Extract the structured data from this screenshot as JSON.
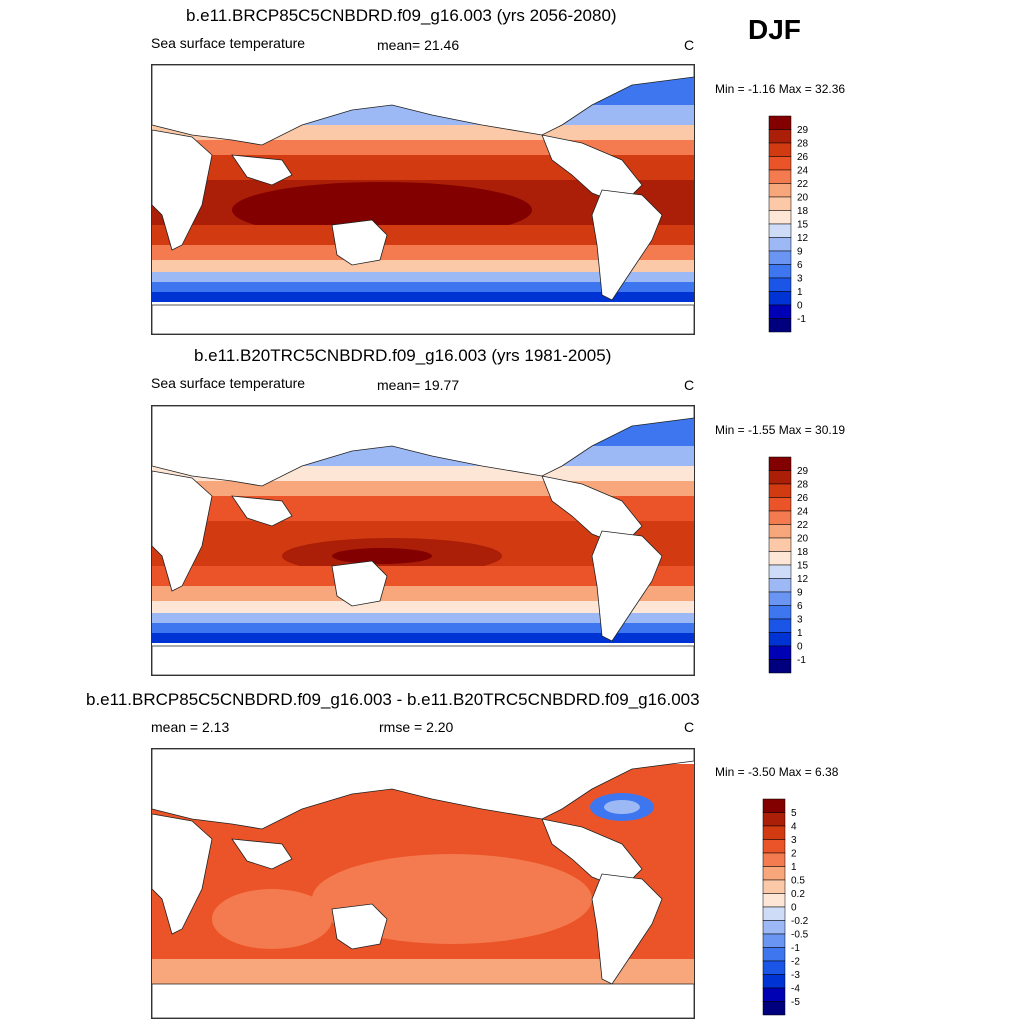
{
  "season": "DJF",
  "colors": {
    "sst": [
      "#00007f",
      "#0000b4",
      "#0033d4",
      "#1a55e8",
      "#3d76ef",
      "#6b95f2",
      "#9cb8f5",
      "#cfdcf7",
      "#fde6d6",
      "#fbc9a8",
      "#f8a67c",
      "#f47b4f",
      "#eb5428",
      "#d23a12",
      "#ab1e07",
      "#820000"
    ],
    "diff": [
      "#00007f",
      "#0000b4",
      "#0033d4",
      "#1a55e8",
      "#3d76ef",
      "#6b95f2",
      "#9cb8f5",
      "#cfdcf7",
      "#fde6d6",
      "#fbc9a8",
      "#f8a67c",
      "#f47b4f",
      "#eb5428",
      "#d23a12",
      "#ab1e07",
      "#820000"
    ]
  },
  "panels": [
    {
      "title": "b.e11.BRCP85C5CNBDRD.f09_g16.003 (yrs 2056-2080)",
      "left_label": "Sea surface temperature",
      "center_label": "mean=  21.46",
      "units": "C",
      "minmax": "Min =  -1.16 Max =  32.36",
      "colorbar_labels": [
        "29",
        "28",
        "26",
        "24",
        "22",
        "20",
        "18",
        "15",
        "12",
        "9",
        "6",
        "3",
        "1",
        "0",
        "-1"
      ]
    },
    {
      "title": "b.e11.B20TRC5CNBDRD.f09_g16.003 (yrs 1981-2005)",
      "left_label": "Sea surface temperature",
      "center_label": "mean=  19.77",
      "units": "C",
      "minmax": "Min =  -1.55 Max =  30.19",
      "colorbar_labels": [
        "29",
        "28",
        "26",
        "24",
        "22",
        "20",
        "18",
        "15",
        "12",
        "9",
        "6",
        "3",
        "1",
        "0",
        "-1"
      ]
    },
    {
      "title": "b.e11.BRCP85C5CNBDRD.f09_g16.003 - b.e11.B20TRC5CNBDRD.f09_g16.003",
      "left_label": "mean =   2.13",
      "center_label": "rmse =   2.20",
      "units": "C",
      "minmax": "Min =  -3.50 Max =   6.38",
      "colorbar_labels": [
        "5",
        "4",
        "3",
        "2",
        "1",
        "0.5",
        "0.2",
        "0",
        "-0.2",
        "-0.5",
        "-1",
        "-2",
        "-3",
        "-4",
        "-5"
      ]
    }
  ],
  "chart_data": [
    {
      "type": "heatmap",
      "title": "b.e11.BRCP85C5CNBDRD.f09_g16.003 (yrs 2056-2080)",
      "variable": "Sea surface temperature",
      "units": "C",
      "mean": 21.46,
      "min": -1.16,
      "max": 32.36,
      "levels": [
        -1,
        0,
        1,
        3,
        6,
        9,
        12,
        15,
        18,
        20,
        22,
        24,
        26,
        28,
        29
      ]
    },
    {
      "type": "heatmap",
      "title": "b.e11.B20TRC5CNBDRD.f09_g16.003 (yrs 1981-2005)",
      "variable": "Sea surface temperature",
      "units": "C",
      "mean": 19.77,
      "min": -1.55,
      "max": 30.19,
      "levels": [
        -1,
        0,
        1,
        3,
        6,
        9,
        12,
        15,
        18,
        20,
        22,
        24,
        26,
        28,
        29
      ]
    },
    {
      "type": "heatmap",
      "title": "b.e11.BRCP85C5CNBDRD.f09_g16.003 - b.e11.B20TRC5CNBDRD.f09_g16.003",
      "units": "C",
      "mean": 2.13,
      "rmse": 2.2,
      "min": -3.5,
      "max": 6.38,
      "levels": [
        -5,
        -4,
        -3,
        -2,
        -1,
        -0.5,
        -0.2,
        0,
        0.2,
        0.5,
        1,
        2,
        3,
        4,
        5
      ]
    }
  ]
}
